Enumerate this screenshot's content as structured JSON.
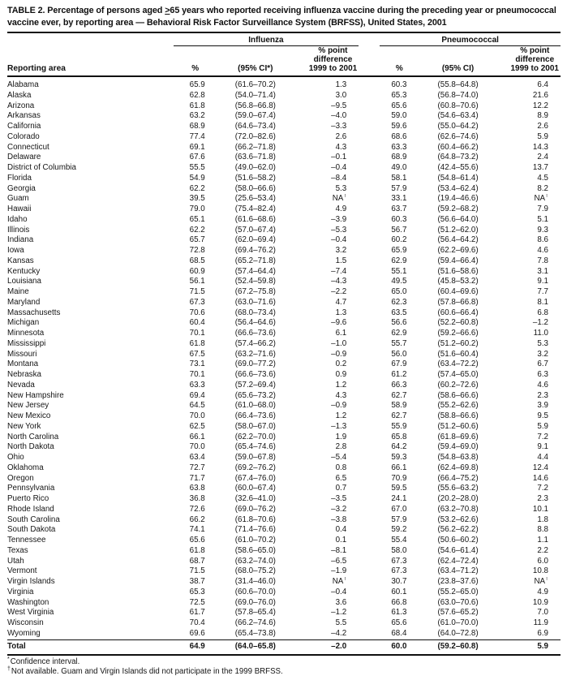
{
  "title": {
    "prefix": "TABLE 2. Percentage of persons aged ",
    "geq": ">",
    "suffix": "65 years who reported receiving influenza vaccine during the preceding year or pneumococcal vaccine ever, by reporting area — Behavioral Risk Factor Surveillance System (BRFSS), United States, 2001"
  },
  "table": {
    "header": {
      "reporting_area": "Reporting area",
      "influenza": "Influenza",
      "pneumococcal": "Pneumococcal",
      "pct": "%",
      "ci_flu": "(95% CI*)",
      "ci_pneu": "(95% CI)",
      "diff_lines": [
        "% point",
        "difference",
        "1999 to 2001"
      ]
    },
    "rows": [
      {
        "area": "Alabama",
        "flu_pct": "65.9",
        "flu_ci": "(61.6–70.2)",
        "flu_diff": "1.3",
        "pn_pct": "60.3",
        "pn_ci": "(55.8–64.8)",
        "pn_diff": "6.4"
      },
      {
        "area": "Alaska",
        "flu_pct": "62.8",
        "flu_ci": "(54.0–71.4)",
        "flu_diff": "3.0",
        "pn_pct": "65.3",
        "pn_ci": "(56.8–74.0)",
        "pn_diff": "21.6"
      },
      {
        "area": "Arizona",
        "flu_pct": "61.8",
        "flu_ci": "(56.8–66.8)",
        "flu_diff": "–9.5",
        "pn_pct": "65.6",
        "pn_ci": "(60.8–70.6)",
        "pn_diff": "12.2"
      },
      {
        "area": "Arkansas",
        "flu_pct": "63.2",
        "flu_ci": "(59.0–67.4)",
        "flu_diff": "–4.0",
        "pn_pct": "59.0",
        "pn_ci": "(54.6–63.4)",
        "pn_diff": "8.9"
      },
      {
        "area": "California",
        "flu_pct": "68.9",
        "flu_ci": "(64.6–73.4)",
        "flu_diff": "–3.3",
        "pn_pct": "59.6",
        "pn_ci": "(55.0–64.2)",
        "pn_diff": "2.6"
      },
      {
        "area": "Colorado",
        "flu_pct": "77.4",
        "flu_ci": "(72.0–82.6)",
        "flu_diff": "2.6",
        "pn_pct": "68.6",
        "pn_ci": "(62.6–74.6)",
        "pn_diff": "5.9"
      },
      {
        "area": "Connecticut",
        "flu_pct": "69.1",
        "flu_ci": "(66.2–71.8)",
        "flu_diff": "4.3",
        "pn_pct": "63.3",
        "pn_ci": "(60.4–66.2)",
        "pn_diff": "14.3"
      },
      {
        "area": "Delaware",
        "flu_pct": "67.6",
        "flu_ci": "(63.6–71.8)",
        "flu_diff": "–0.1",
        "pn_pct": "68.9",
        "pn_ci": "(64.8–73.2)",
        "pn_diff": "2.4"
      },
      {
        "area": "District of Columbia",
        "flu_pct": "55.5",
        "flu_ci": "(49.0–62.0)",
        "flu_diff": "–0.4",
        "pn_pct": "49.0",
        "pn_ci": "(42.4–55.6)",
        "pn_diff": "13.7"
      },
      {
        "area": "Florida",
        "flu_pct": "54.9",
        "flu_ci": "(51.6–58.2)",
        "flu_diff": "–8.4",
        "pn_pct": "58.1",
        "pn_ci": "(54.8–61.4)",
        "pn_diff": "4.5"
      },
      {
        "area": "Georgia",
        "flu_pct": "62.2",
        "flu_ci": "(58.0–66.6)",
        "flu_diff": "5.3",
        "pn_pct": "57.9",
        "pn_ci": "(53.4–62.4)",
        "pn_diff": "8.2"
      },
      {
        "area": "Guam",
        "flu_pct": "39.5",
        "flu_ci": "(25.6–53.4)",
        "flu_diff": "NA†",
        "pn_pct": "33.1",
        "pn_ci": "(19.4–46.6)",
        "pn_diff": "NA†"
      },
      {
        "area": "Hawaii",
        "flu_pct": "79.0",
        "flu_ci": "(75.4–82.4)",
        "flu_diff": "4.9",
        "pn_pct": "63.7",
        "pn_ci": "(59.2–68.2)",
        "pn_diff": "7.9"
      },
      {
        "area": "Idaho",
        "flu_pct": "65.1",
        "flu_ci": "(61.6–68.6)",
        "flu_diff": "–3.9",
        "pn_pct": "60.3",
        "pn_ci": "(56.6–64.0)",
        "pn_diff": "5.1"
      },
      {
        "area": "Illinois",
        "flu_pct": "62.2",
        "flu_ci": "(57.0–67.4)",
        "flu_diff": "–5.3",
        "pn_pct": "56.7",
        "pn_ci": "(51.2–62.0)",
        "pn_diff": "9.3"
      },
      {
        "area": "Indiana",
        "flu_pct": "65.7",
        "flu_ci": "(62.0–69.4)",
        "flu_diff": "–0.4",
        "pn_pct": "60.2",
        "pn_ci": "(56.4–64.2)",
        "pn_diff": "8.6"
      },
      {
        "area": "Iowa",
        "flu_pct": "72.8",
        "flu_ci": "(69.4–76.2)",
        "flu_diff": "3.2",
        "pn_pct": "65.9",
        "pn_ci": "(62.2–69.6)",
        "pn_diff": "4.6"
      },
      {
        "area": "Kansas",
        "flu_pct": "68.5",
        "flu_ci": "(65.2–71.8)",
        "flu_diff": "1.5",
        "pn_pct": "62.9",
        "pn_ci": "(59.4–66.4)",
        "pn_diff": "7.8"
      },
      {
        "area": "Kentucky",
        "flu_pct": "60.9",
        "flu_ci": "(57.4–64.4)",
        "flu_diff": "–7.4",
        "pn_pct": "55.1",
        "pn_ci": "(51.6–58.6)",
        "pn_diff": "3.1"
      },
      {
        "area": "Louisiana",
        "flu_pct": "56.1",
        "flu_ci": "(52.4–59.8)",
        "flu_diff": "–4.3",
        "pn_pct": "49.5",
        "pn_ci": "(45.8–53.2)",
        "pn_diff": "9.1"
      },
      {
        "area": "Maine",
        "flu_pct": "71.5",
        "flu_ci": "(67.2–75.8)",
        "flu_diff": "–2.2",
        "pn_pct": "65.0",
        "pn_ci": "(60.4–69.6)",
        "pn_diff": "7.7"
      },
      {
        "area": "Maryland",
        "flu_pct": "67.3",
        "flu_ci": "(63.0–71.6)",
        "flu_diff": "4.7",
        "pn_pct": "62.3",
        "pn_ci": "(57.8–66.8)",
        "pn_diff": "8.1"
      },
      {
        "area": "Massachusetts",
        "flu_pct": "70.6",
        "flu_ci": "(68.0–73.4)",
        "flu_diff": "1.3",
        "pn_pct": "63.5",
        "pn_ci": "(60.6–66.4)",
        "pn_diff": "6.8"
      },
      {
        "area": "Michigan",
        "flu_pct": "60.4",
        "flu_ci": "(56.4–64.6)",
        "flu_diff": "–9.6",
        "pn_pct": "56.6",
        "pn_ci": "(52.2–60.8)",
        "pn_diff": "–1.2"
      },
      {
        "area": "Minnesota",
        "flu_pct": "70.1",
        "flu_ci": "(66.6–73.6)",
        "flu_diff": "6.1",
        "pn_pct": "62.9",
        "pn_ci": "(59.2–66.6)",
        "pn_diff": "11.0"
      },
      {
        "area": "Mississippi",
        "flu_pct": "61.8",
        "flu_ci": "(57.4–66.2)",
        "flu_diff": "–1.0",
        "pn_pct": "55.7",
        "pn_ci": "(51.2–60.2)",
        "pn_diff": "5.3"
      },
      {
        "area": "Missouri",
        "flu_pct": "67.5",
        "flu_ci": "(63.2–71.6)",
        "flu_diff": "–0.9",
        "pn_pct": "56.0",
        "pn_ci": "(51.6–60.4)",
        "pn_diff": "3.2"
      },
      {
        "area": "Montana",
        "flu_pct": "73.1",
        "flu_ci": "(69.0–77.2)",
        "flu_diff": "0.2",
        "pn_pct": "67.9",
        "pn_ci": "(63.4–72.2)",
        "pn_diff": "6.7"
      },
      {
        "area": "Nebraska",
        "flu_pct": "70.1",
        "flu_ci": "(66.6–73.6)",
        "flu_diff": "0.9",
        "pn_pct": "61.2",
        "pn_ci": "(57.4–65.0)",
        "pn_diff": "6.3"
      },
      {
        "area": "Nevada",
        "flu_pct": "63.3",
        "flu_ci": "(57.2–69.4)",
        "flu_diff": "1.2",
        "pn_pct": "66.3",
        "pn_ci": "(60.2–72.6)",
        "pn_diff": "4.6"
      },
      {
        "area": "New Hampshire",
        "flu_pct": "69.4",
        "flu_ci": "(65.6–73.2)",
        "flu_diff": "4.3",
        "pn_pct": "62.7",
        "pn_ci": "(58.6–66.6)",
        "pn_diff": "2.3"
      },
      {
        "area": "New Jersey",
        "flu_pct": "64.5",
        "flu_ci": "(61.0–68.0)",
        "flu_diff": "–0.9",
        "pn_pct": "58.9",
        "pn_ci": "(55.2–62.6)",
        "pn_diff": "3.9"
      },
      {
        "area": "New Mexico",
        "flu_pct": "70.0",
        "flu_ci": "(66.4–73.6)",
        "flu_diff": "1.2",
        "pn_pct": "62.7",
        "pn_ci": "(58.8–66.6)",
        "pn_diff": "9.5"
      },
      {
        "area": "New York",
        "flu_pct": "62.5",
        "flu_ci": "(58.0–67.0)",
        "flu_diff": "–1.3",
        "pn_pct": "55.9",
        "pn_ci": "(51.2–60.6)",
        "pn_diff": "5.9"
      },
      {
        "area": "North Carolina",
        "flu_pct": "66.1",
        "flu_ci": "(62.2–70.0)",
        "flu_diff": "1.9",
        "pn_pct": "65.8",
        "pn_ci": "(61.8–69.6)",
        "pn_diff": "7.2"
      },
      {
        "area": "North Dakota",
        "flu_pct": "70.0",
        "flu_ci": "(65.4–74.6)",
        "flu_diff": "2.8",
        "pn_pct": "64.2",
        "pn_ci": "(59.4–69.0)",
        "pn_diff": "9.1"
      },
      {
        "area": "Ohio",
        "flu_pct": "63.4",
        "flu_ci": "(59.0–67.8)",
        "flu_diff": "–5.4",
        "pn_pct": "59.3",
        "pn_ci": "(54.8–63.8)",
        "pn_diff": "4.4"
      },
      {
        "area": "Oklahoma",
        "flu_pct": "72.7",
        "flu_ci": "(69.2–76.2)",
        "flu_diff": "0.8",
        "pn_pct": "66.1",
        "pn_ci": "(62.4–69.8)",
        "pn_diff": "12.4"
      },
      {
        "area": "Oregon",
        "flu_pct": "71.7",
        "flu_ci": "(67.4–76.0)",
        "flu_diff": "6.5",
        "pn_pct": "70.9",
        "pn_ci": "(66.4–75.2)",
        "pn_diff": "14.6"
      },
      {
        "area": "Pennsylvania",
        "flu_pct": "63.8",
        "flu_ci": "(60.0–67.4)",
        "flu_diff": "0.7",
        "pn_pct": "59.5",
        "pn_ci": "(55.6–63.2)",
        "pn_diff": "7.2"
      },
      {
        "area": "Puerto Rico",
        "flu_pct": "36.8",
        "flu_ci": "(32.6–41.0)",
        "flu_diff": "–3.5",
        "pn_pct": "24.1",
        "pn_ci": "(20.2–28.0)",
        "pn_diff": "2.3"
      },
      {
        "area": "Rhode Island",
        "flu_pct": "72.6",
        "flu_ci": "(69.0–76.2)",
        "flu_diff": "–3.2",
        "pn_pct": "67.0",
        "pn_ci": "(63.2–70.8)",
        "pn_diff": "10.1"
      },
      {
        "area": "South Carolina",
        "flu_pct": "66.2",
        "flu_ci": "(61.8–70.6)",
        "flu_diff": "–3.8",
        "pn_pct": "57.9",
        "pn_ci": "(53.2–62.6)",
        "pn_diff": "1.8"
      },
      {
        "area": "South Dakota",
        "flu_pct": "74.1",
        "flu_ci": "(71.4–76.6)",
        "flu_diff": "0.4",
        "pn_pct": "59.2",
        "pn_ci": "(56.2–62.2)",
        "pn_diff": "8.8"
      },
      {
        "area": "Tennessee",
        "flu_pct": "65.6",
        "flu_ci": "(61.0–70.2)",
        "flu_diff": "0.1",
        "pn_pct": "55.4",
        "pn_ci": "(50.6–60.2)",
        "pn_diff": "1.1"
      },
      {
        "area": "Texas",
        "flu_pct": "61.8",
        "flu_ci": "(58.6–65.0)",
        "flu_diff": "–8.1",
        "pn_pct": "58.0",
        "pn_ci": "(54.6–61.4)",
        "pn_diff": "2.2"
      },
      {
        "area": "Utah",
        "flu_pct": "68.7",
        "flu_ci": "(63.2–74.0)",
        "flu_diff": "–6.5",
        "pn_pct": "67.3",
        "pn_ci": "(62.4–72.4)",
        "pn_diff": "6.0"
      },
      {
        "area": "Vermont",
        "flu_pct": "71.5",
        "flu_ci": "(68.0–75.2)",
        "flu_diff": "–1.9",
        "pn_pct": "67.3",
        "pn_ci": "(63.4–71.2)",
        "pn_diff": "10.8"
      },
      {
        "area": "Virgin Islands",
        "flu_pct": "38.7",
        "flu_ci": "(31.4–46.0)",
        "flu_diff": "NA†",
        "pn_pct": "30.7",
        "pn_ci": "(23.8–37.6)",
        "pn_diff": "NA†"
      },
      {
        "area": "Virginia",
        "flu_pct": "65.3",
        "flu_ci": "(60.6–70.0)",
        "flu_diff": "–0.4",
        "pn_pct": "60.1",
        "pn_ci": "(55.2–65.0)",
        "pn_diff": "4.9"
      },
      {
        "area": "Washington",
        "flu_pct": "72.5",
        "flu_ci": "(69.0–76.0)",
        "flu_diff": "3.6",
        "pn_pct": "66.8",
        "pn_ci": "(63.0–70.6)",
        "pn_diff": "10.9"
      },
      {
        "area": "West Virginia",
        "flu_pct": "61.7",
        "flu_ci": "(57.8–65.4)",
        "flu_diff": "–1.2",
        "pn_pct": "61.3",
        "pn_ci": "(57.6–65.2)",
        "pn_diff": "7.0"
      },
      {
        "area": "Wisconsin",
        "flu_pct": "70.4",
        "flu_ci": "(66.2–74.6)",
        "flu_diff": "5.5",
        "pn_pct": "65.6",
        "pn_ci": "(61.0–70.0)",
        "pn_diff": "11.9"
      },
      {
        "area": "Wyoming",
        "flu_pct": "69.6",
        "flu_ci": "(65.4–73.8)",
        "flu_diff": "–4.2",
        "pn_pct": "68.4",
        "pn_ci": "(64.0–72.8)",
        "pn_diff": "6.9"
      }
    ],
    "total": {
      "area": "Total",
      "flu_pct": "64.9",
      "flu_ci": "(64.0–65.8)",
      "flu_diff": "–2.0",
      "pn_pct": "60.0",
      "pn_ci": "(59.2–60.8)",
      "pn_diff": "5.9"
    }
  },
  "footnotes": [
    {
      "marker": "*",
      "text": "Confidence interval."
    },
    {
      "marker": "†",
      "text": "Not available. Guam and Virgin Islands did not participate in the 1999 BRFSS."
    }
  ],
  "colors": {
    "text": "#151515",
    "rule": "#101010",
    "background": "#ffffff"
  }
}
